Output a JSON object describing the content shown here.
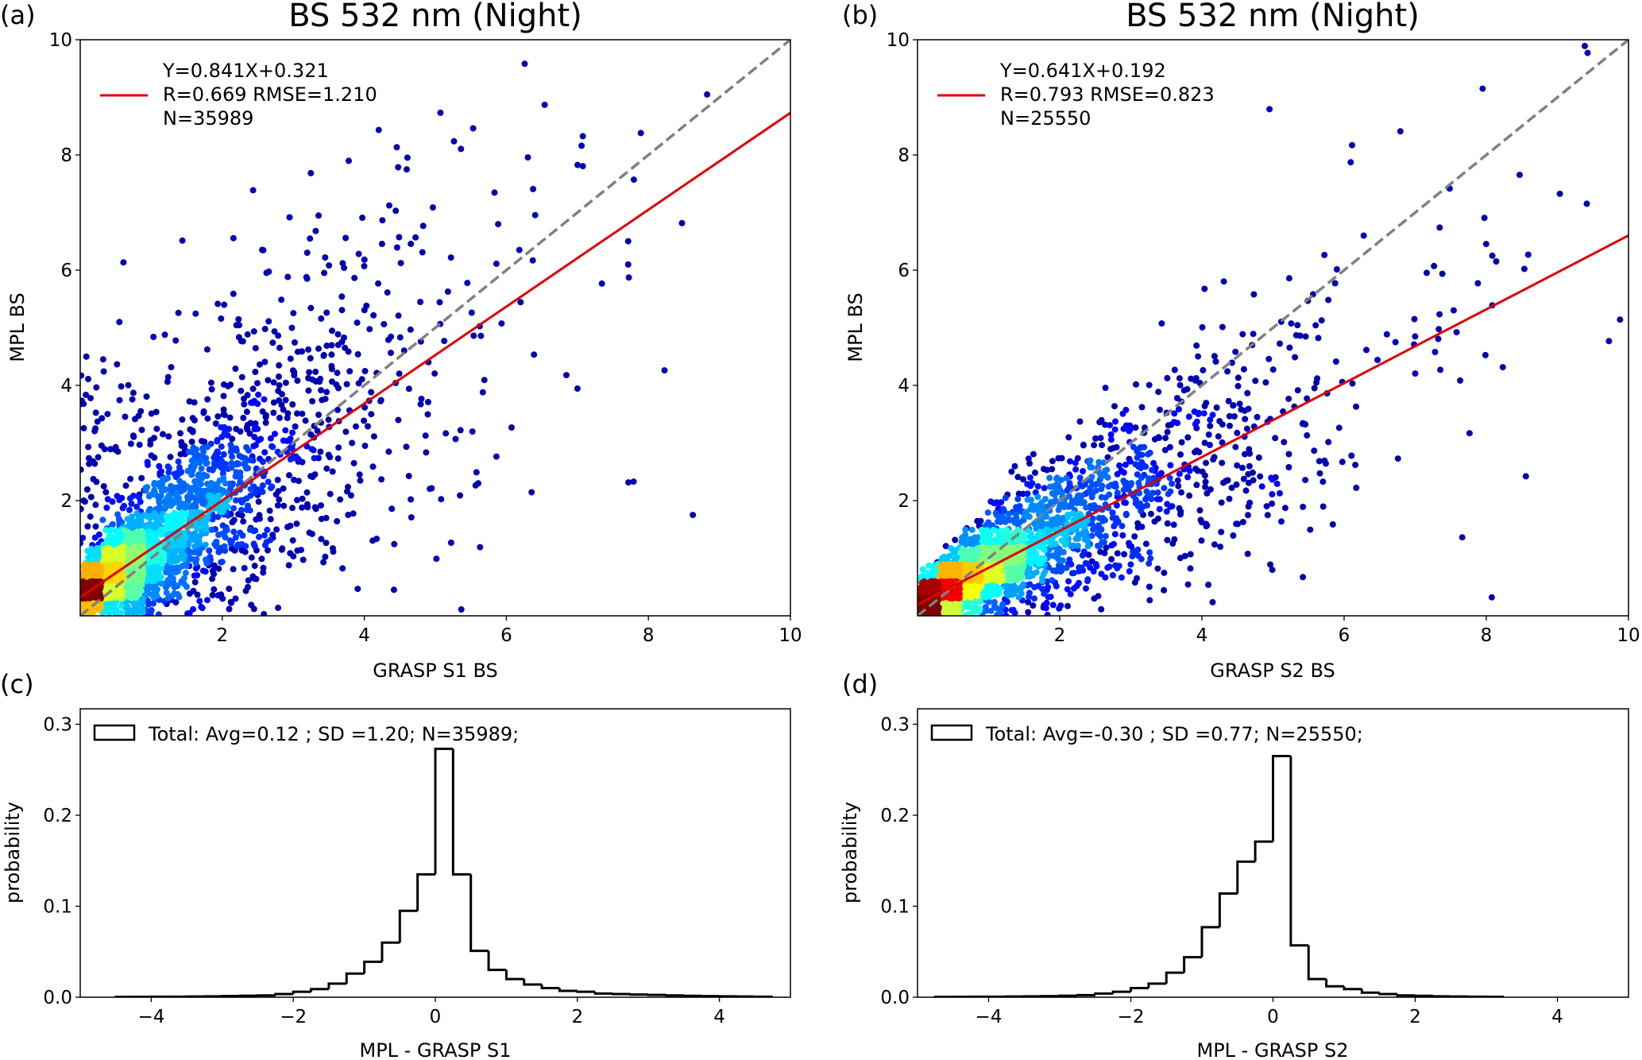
{
  "chart_data": [
    {
      "panel_label": "(a)",
      "type": "scatter",
      "title": "BS 532 nm (Night)",
      "xlabel": "GRASP S1 BS",
      "ylabel": "MPL BS",
      "xlim": [
        0,
        10
      ],
      "ylim": [
        0,
        10
      ],
      "xticks": [
        2,
        4,
        6,
        8,
        10
      ],
      "yticks": [
        2,
        4,
        6,
        8,
        10
      ],
      "fit": {
        "slope": 0.841,
        "intercept": 0.321,
        "color": "#e00000"
      },
      "one_to_one_line": {
        "style": "dashed",
        "color": "#808080"
      },
      "legend": [
        "Y=0.841X+0.321",
        "R=0.669  RMSE=1.210",
        "N=35989"
      ],
      "legend_position": "top-left",
      "n": 35989,
      "colormap": "jet (point density)",
      "point_color_low_density": "#00008b"
    },
    {
      "panel_label": "(b)",
      "type": "scatter",
      "title": "BS 532 nm (Night)",
      "xlabel": "GRASP S2 BS",
      "ylabel": "MPL BS",
      "xlim": [
        0,
        10
      ],
      "ylim": [
        0,
        10
      ],
      "xticks": [
        2,
        4,
        6,
        8,
        10
      ],
      "yticks": [
        2,
        4,
        6,
        8,
        10
      ],
      "fit": {
        "slope": 0.641,
        "intercept": 0.192,
        "color": "#e00000"
      },
      "one_to_one_line": {
        "style": "dashed",
        "color": "#808080"
      },
      "legend": [
        "Y=0.641X+0.192",
        "R=0.793  RMSE=0.823",
        "N=25550"
      ],
      "legend_position": "top-left",
      "n": 25550,
      "colormap": "jet (point density)",
      "point_color_low_density": "#00008b"
    },
    {
      "panel_label": "(c)",
      "type": "histogram",
      "xlabel": "MPL - GRASP S1",
      "ylabel": "probability",
      "xlim": [
        -5,
        5
      ],
      "ylim": [
        0,
        0.317
      ],
      "xticks": [
        -4,
        -2,
        0,
        2,
        4
      ],
      "xtick_labels": [
        "−4",
        "−2",
        "0",
        "2",
        "4"
      ],
      "yticks": [
        0,
        0.1,
        0.2,
        0.3
      ],
      "ytick_labels": [
        "0.0",
        "0.1",
        "0.2",
        "0.3"
      ],
      "legend": "Total: Avg=0.12 ; SD =1.20; N=35989;",
      "legend_position": "top-left",
      "bin_start": -4.5,
      "bin_width": 0.25,
      "values": [
        0.0003,
        0.0004,
        0.0005,
        0.0006,
        0.0008,
        0.001,
        0.0013,
        0.0016,
        0.002,
        0.0035,
        0.006,
        0.009,
        0.015,
        0.026,
        0.039,
        0.06,
        0.095,
        0.135,
        0.273,
        0.135,
        0.051,
        0.03,
        0.02,
        0.014,
        0.01,
        0.007,
        0.006,
        0.004,
        0.0035,
        0.003,
        0.0025,
        0.002,
        0.0015,
        0.0012,
        0.001,
        0.0008,
        0.0006
      ]
    },
    {
      "panel_label": "(d)",
      "type": "histogram",
      "xlabel": "MPL - GRASP S2",
      "ylabel": "probability",
      "xlim": [
        -5,
        5
      ],
      "ylim": [
        0,
        0.317
      ],
      "xticks": [
        -4,
        -2,
        0,
        2,
        4
      ],
      "xtick_labels": [
        "−4",
        "−2",
        "0",
        "2",
        "4"
      ],
      "yticks": [
        0,
        0.1,
        0.2,
        0.3
      ],
      "ytick_labels": [
        "0.0",
        "0.1",
        "0.2",
        "0.3"
      ],
      "legend": "Total: Avg=-0.30 ; SD =0.77; N=25550;",
      "legend_position": "top-left",
      "bin_start": -4.75,
      "bin_width": 0.25,
      "values": [
        0.0003,
        0.0004,
        0.0005,
        0.0006,
        0.0008,
        0.001,
        0.0012,
        0.0016,
        0.0023,
        0.004,
        0.006,
        0.01,
        0.015,
        0.027,
        0.044,
        0.077,
        0.114,
        0.149,
        0.171,
        0.265,
        0.057,
        0.02,
        0.012,
        0.009,
        0.005,
        0.0035,
        0.002,
        0.0015,
        0.001,
        0.0008,
        0.0006,
        0.0004
      ]
    }
  ]
}
